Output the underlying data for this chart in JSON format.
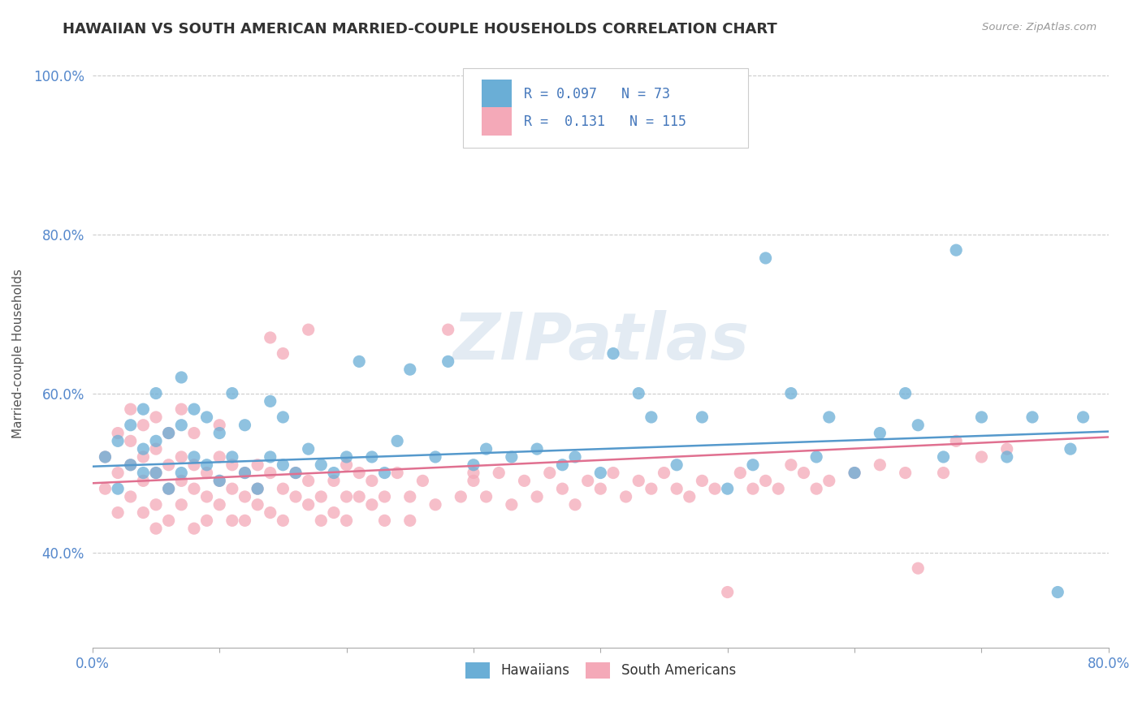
{
  "title": "HAWAIIAN VS SOUTH AMERICAN MARRIED-COUPLE HOUSEHOLDS CORRELATION CHART",
  "source": "Source: ZipAtlas.com",
  "ylabel": "Married-couple Households",
  "xlim": [
    0.0,
    0.8
  ],
  "ylim": [
    0.28,
    1.02
  ],
  "yticks": [
    0.4,
    0.6,
    0.8,
    1.0
  ],
  "ytick_labels": [
    "40.0%",
    "60.0%",
    "80.0%",
    "100.0%"
  ],
  "xticks": [
    0.0,
    0.1,
    0.2,
    0.3,
    0.4,
    0.5,
    0.6,
    0.7,
    0.8
  ],
  "xtick_labels": [
    "0.0%",
    "",
    "",
    "",
    "",
    "",
    "",
    "",
    "80.0%"
  ],
  "legend_R1": "0.097",
  "legend_N1": "73",
  "legend_R2": "0.131",
  "legend_N2": "115",
  "hawaiian_color": "#6aaed6",
  "south_american_color": "#f4a9b8",
  "hawaii_line_color": "#5599cc",
  "sa_line_color": "#e07090",
  "background_color": "#ffffff",
  "watermark_color": "#c8d8e8",
  "watermark_alpha": 0.5,
  "title_fontsize": 13,
  "tick_fontsize": 12,
  "ylabel_fontsize": 11,
  "dot_size": 120,
  "dot_alpha": 0.75,
  "line_width": 1.8,
  "hawaii_line_start_y": 0.508,
  "hawaii_line_end_y": 0.552,
  "sa_line_start_y": 0.487,
  "sa_line_end_y": 0.545
}
